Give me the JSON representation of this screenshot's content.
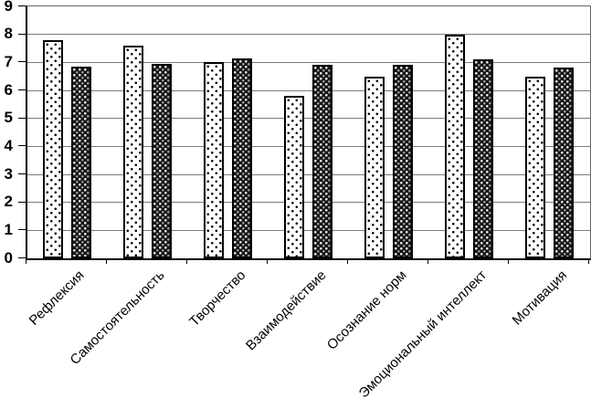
{
  "chart_data": {
    "type": "bar",
    "title": "",
    "xlabel": "",
    "ylabel": "",
    "categories": [
      "Рефлексия",
      "Самостоятельность",
      "Творчество",
      "Взаимодействие",
      "Осознание норм",
      "Эмоциональный интеллект",
      "Мотивация"
    ],
    "series": [
      {
        "name": "dotted-white",
        "values": [
          7.8,
          7.6,
          7.0,
          5.8,
          6.5,
          8.0,
          6.5
        ]
      },
      {
        "name": "dark-trellis",
        "values": [
          6.85,
          6.95,
          7.15,
          6.9,
          6.9,
          7.1,
          6.8
        ]
      }
    ],
    "ylim": [
      0,
      9
    ],
    "yticks": [
      0,
      1,
      2,
      3,
      4,
      5,
      6,
      7,
      8,
      9
    ],
    "grid": true,
    "legend": "none",
    "colors": {
      "gridline": "#7a7a7a",
      "axis": "#000000",
      "dotted-white": {
        "fill": "#ffffff",
        "dot": "#000000",
        "border": "#000000"
      },
      "dark-trellis": {
        "fill": "#161616",
        "dot": "#f0f0f0",
        "border": "#000000"
      }
    }
  }
}
